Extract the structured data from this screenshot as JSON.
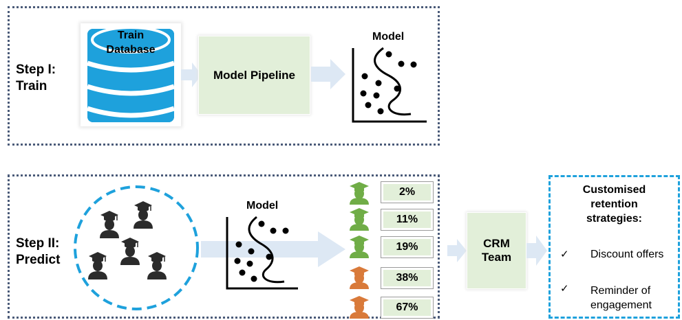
{
  "step1": {
    "label_line1": "Step I:",
    "label_line2": "Train",
    "database_line1": "Train",
    "database_line2": "Database",
    "pipeline": "Model Pipeline",
    "model_title": "Model"
  },
  "step2": {
    "label_line1": "Step II:",
    "label_line2": "Predict",
    "model_title": "Model",
    "predictions": [
      {
        "value": "2%",
        "icon_color": "#70ad47"
      },
      {
        "value": "11%",
        "icon_color": "#70ad47"
      },
      {
        "value": "19%",
        "icon_color": "#70ad47"
      },
      {
        "value": "38%",
        "icon_color": "#d97a3a"
      },
      {
        "value": "67%",
        "icon_color": "#d97a3a"
      }
    ],
    "crm_line1": "CRM",
    "crm_line2": "Team",
    "strategies_title_line1": "Customised",
    "strategies_title_line2": "retention",
    "strategies_title_line3": "strategies:",
    "strategy1": "Discount offers",
    "strategy2_line1": "Reminder of",
    "strategy2_line2": "engagement"
  },
  "colors": {
    "panel_border": "#4a5a78",
    "database_blue": "#1ea1dc",
    "green_box": "#e2efd9",
    "arrow": "#dde8f4",
    "circle_dash": "#1ea1dc"
  }
}
